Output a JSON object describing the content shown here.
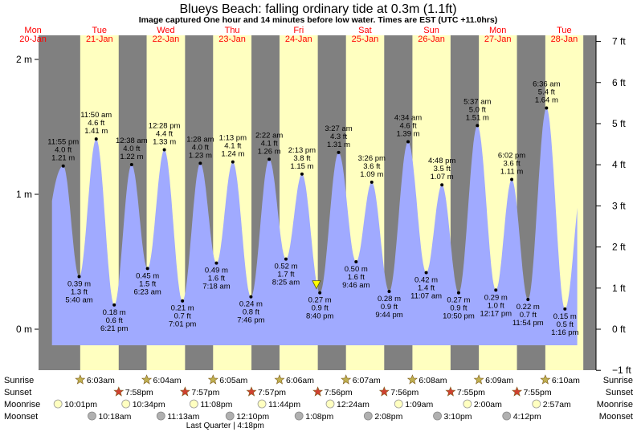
{
  "title": "Blueys Beach: falling  ordinary tide at 0.3m (1.1ft)",
  "subtitle": "Image captured One hour and 14 minutes before low water. Times are EST (UTC +11.0hrs)",
  "colors": {
    "night": "#808080",
    "day": "#ffffc0",
    "tide_fill": "#a0aaff",
    "day_label": "#ff0000",
    "moon": "#ffffc0",
    "moonset": "#b0b0b0",
    "sun": "#c0b050",
    "sunset": "#d04030"
  },
  "chart_data": {
    "type": "area",
    "title": "Blueys Beach: falling  ordinary tide at 0.3m (1.1ft)",
    "ylim_m": [
      -0.23,
      2.1
    ],
    "ylim_ft": [
      -1,
      7
    ],
    "y_left_ticks": [
      {
        "v": 2,
        "label": "2 m"
      },
      {
        "v": 1,
        "label": "1 m"
      },
      {
        "v": 0,
        "label": "0 m"
      }
    ],
    "y_right_ticks": [
      {
        "v": 7,
        "label": "7 ft"
      },
      {
        "v": 6,
        "label": "6 ft"
      },
      {
        "v": 5,
        "label": "5 ft"
      },
      {
        "v": 4,
        "label": "4 ft"
      },
      {
        "v": 3,
        "label": "3 ft"
      },
      {
        "v": 2,
        "label": "2 ft"
      },
      {
        "v": 1,
        "label": "1 ft"
      },
      {
        "v": 0,
        "label": "0 ft"
      },
      {
        "v": -1,
        "label": "−1 ft"
      }
    ],
    "days": [
      {
        "name": "Mon",
        "date": "20-Jan"
      },
      {
        "name": "Tue",
        "date": "21-Jan"
      },
      {
        "name": "Wed",
        "date": "22-Jan"
      },
      {
        "name": "Thu",
        "date": "23-Jan"
      },
      {
        "name": "Fri",
        "date": "24-Jan"
      },
      {
        "name": "Sat",
        "date": "25-Jan"
      },
      {
        "name": "Sun",
        "date": "26-Jan"
      },
      {
        "name": "Mon",
        "date": "27-Jan"
      },
      {
        "name": "Tue",
        "date": "28-Jan"
      }
    ],
    "daylight": [
      {
        "start": "2025-01-21 06:03",
        "end": "2025-01-21 19:58"
      },
      {
        "start": "2025-01-22 06:04",
        "end": "2025-01-22 19:57"
      },
      {
        "start": "2025-01-23 06:05",
        "end": "2025-01-23 19:57"
      },
      {
        "start": "2025-01-24 06:06",
        "end": "2025-01-24 19:56"
      },
      {
        "start": "2025-01-25 06:07",
        "end": "2025-01-25 19:56"
      },
      {
        "start": "2025-01-26 06:08",
        "end": "2025-01-26 19:55"
      },
      {
        "start": "2025-01-27 06:09",
        "end": "2025-01-27 19:55"
      },
      {
        "start": "2025-01-28 06:10",
        "end": "2025-01-28 19:54"
      }
    ],
    "tides": [
      {
        "t": "2025-01-20 23:55",
        "m": 1.21,
        "time": "11:55 pm",
        "ft": "4.0 ft",
        "mtxt": "1.21 m",
        "type": "high"
      },
      {
        "t": "2025-01-21 05:40",
        "m": 0.39,
        "time": "5:40 am",
        "ft": "1.3 ft",
        "mtxt": "0.39 m",
        "type": "low"
      },
      {
        "t": "2025-01-21 11:50",
        "m": 1.41,
        "time": "11:50 am",
        "ft": "4.6 ft",
        "mtxt": "1.41 m",
        "type": "high"
      },
      {
        "t": "2025-01-21 18:21",
        "m": 0.18,
        "time": "6:21 pm",
        "ft": "0.6 ft",
        "mtxt": "0.18 m",
        "type": "low"
      },
      {
        "t": "2025-01-22 00:38",
        "m": 1.22,
        "time": "12:38 am",
        "ft": "4.0 ft",
        "mtxt": "1.22 m",
        "type": "high"
      },
      {
        "t": "2025-01-22 06:23",
        "m": 0.45,
        "time": "6:23 am",
        "ft": "1.5 ft",
        "mtxt": "0.45 m",
        "type": "low"
      },
      {
        "t": "2025-01-22 12:28",
        "m": 1.33,
        "time": "12:28 pm",
        "ft": "4.4 ft",
        "mtxt": "1.33 m",
        "type": "high"
      },
      {
        "t": "2025-01-22 19:01",
        "m": 0.21,
        "time": "7:01 pm",
        "ft": "0.7 ft",
        "mtxt": "0.21 m",
        "type": "low"
      },
      {
        "t": "2025-01-23 01:28",
        "m": 1.23,
        "time": "1:28 am",
        "ft": "4.0 ft",
        "mtxt": "1.23 m",
        "type": "high"
      },
      {
        "t": "2025-01-23 07:18",
        "m": 0.49,
        "time": "7:18 am",
        "ft": "1.6 ft",
        "mtxt": "0.49 m",
        "type": "low"
      },
      {
        "t": "2025-01-23 13:13",
        "m": 1.24,
        "time": "1:13 pm",
        "ft": "4.1 ft",
        "mtxt": "1.24 m",
        "type": "high"
      },
      {
        "t": "2025-01-23 19:46",
        "m": 0.24,
        "time": "7:46 pm",
        "ft": "0.8 ft",
        "mtxt": "0.24 m",
        "type": "low"
      },
      {
        "t": "2025-01-24 02:22",
        "m": 1.26,
        "time": "2:22 am",
        "ft": "4.1 ft",
        "mtxt": "1.26 m",
        "type": "high"
      },
      {
        "t": "2025-01-24 08:25",
        "m": 0.52,
        "time": "8:25 am",
        "ft": "1.7 ft",
        "mtxt": "0.52 m",
        "type": "low"
      },
      {
        "t": "2025-01-24 14:13",
        "m": 1.15,
        "time": "2:13 pm",
        "ft": "3.8 ft",
        "mtxt": "1.15 m",
        "type": "high"
      },
      {
        "t": "2025-01-24 20:40",
        "m": 0.27,
        "time": "8:40 pm",
        "ft": "0.9 ft",
        "mtxt": "0.27 m",
        "type": "low"
      },
      {
        "t": "2025-01-25 03:27",
        "m": 1.31,
        "time": "3:27 am",
        "ft": "4.3 ft",
        "mtxt": "1.31 m",
        "type": "high"
      },
      {
        "t": "2025-01-25 09:46",
        "m": 0.5,
        "time": "9:46 am",
        "ft": "1.6 ft",
        "mtxt": "0.50 m",
        "type": "low"
      },
      {
        "t": "2025-01-25 15:26",
        "m": 1.09,
        "time": "3:26 pm",
        "ft": "3.6 ft",
        "mtxt": "1.09 m",
        "type": "high"
      },
      {
        "t": "2025-01-25 21:44",
        "m": 0.28,
        "time": "9:44 pm",
        "ft": "0.9 ft",
        "mtxt": "0.28 m",
        "type": "low"
      },
      {
        "t": "2025-01-26 04:34",
        "m": 1.39,
        "time": "4:34 am",
        "ft": "4.6 ft",
        "mtxt": "1.39 m",
        "type": "high"
      },
      {
        "t": "2025-01-26 11:07",
        "m": 0.42,
        "time": "11:07 am",
        "ft": "1.4 ft",
        "mtxt": "0.42 m",
        "type": "low"
      },
      {
        "t": "2025-01-26 16:48",
        "m": 1.07,
        "time": "4:48 pm",
        "ft": "3.5 ft",
        "mtxt": "1.07 m",
        "type": "high"
      },
      {
        "t": "2025-01-26 22:50",
        "m": 0.27,
        "time": "10:50 pm",
        "ft": "0.9 ft",
        "mtxt": "0.27 m",
        "type": "low"
      },
      {
        "t": "2025-01-27 05:37",
        "m": 1.51,
        "time": "5:37 am",
        "ft": "5.0 ft",
        "mtxt": "1.51 m",
        "type": "high"
      },
      {
        "t": "2025-01-27 12:17",
        "m": 0.29,
        "time": "12:17 pm",
        "ft": "1.0 ft",
        "mtxt": "0.29 m",
        "type": "low"
      },
      {
        "t": "2025-01-27 18:02",
        "m": 1.11,
        "time": "6:02 pm",
        "ft": "3.6 ft",
        "mtxt": "1.11 m",
        "type": "high"
      },
      {
        "t": "2025-01-27 23:54",
        "m": 0.22,
        "time": "11:54 pm",
        "ft": "0.7 ft",
        "mtxt": "0.22 m",
        "type": "low"
      },
      {
        "t": "2025-01-28 06:36",
        "m": 1.64,
        "time": "6:36 am",
        "ft": "5.4 ft",
        "mtxt": "1.64 m",
        "type": "high"
      },
      {
        "t": "2025-01-28 13:16",
        "m": 0.15,
        "time": "1:16 pm",
        "ft": "0.5 ft",
        "mtxt": "0.15 m",
        "type": "low"
      }
    ],
    "current": {
      "t": "2025-01-24 19:26",
      "m": 0.3
    }
  },
  "astro": {
    "labels": {
      "sunrise": "Sunrise",
      "sunset": "Sunset",
      "moonrise": "Moonrise",
      "moonset": "Moonset"
    },
    "sunrise": [
      {
        "t": "2025-01-21 06:03",
        "label": "6:03am"
      },
      {
        "t": "2025-01-22 06:04",
        "label": "6:04am"
      },
      {
        "t": "2025-01-23 06:05",
        "label": "6:05am"
      },
      {
        "t": "2025-01-24 06:06",
        "label": "6:06am"
      },
      {
        "t": "2025-01-25 06:07",
        "label": "6:07am"
      },
      {
        "t": "2025-01-26 06:08",
        "label": "6:08am"
      },
      {
        "t": "2025-01-27 06:09",
        "label": "6:09am"
      },
      {
        "t": "2025-01-28 06:10",
        "label": "6:10am"
      }
    ],
    "sunset": [
      {
        "t": "2025-01-21 19:58",
        "label": "7:58pm"
      },
      {
        "t": "2025-01-22 19:57",
        "label": "7:57pm"
      },
      {
        "t": "2025-01-23 19:57",
        "label": "7:57pm"
      },
      {
        "t": "2025-01-24 19:56",
        "label": "7:56pm"
      },
      {
        "t": "2025-01-25 19:56",
        "label": "7:56pm"
      },
      {
        "t": "2025-01-26 19:55",
        "label": "7:55pm"
      },
      {
        "t": "2025-01-27 19:55",
        "label": "7:55pm"
      }
    ],
    "moonrise": [
      {
        "t": "2025-01-20 22:01",
        "label": "10:01pm"
      },
      {
        "t": "2025-01-21 22:34",
        "label": "10:34pm"
      },
      {
        "t": "2025-01-22 23:08",
        "label": "11:08pm"
      },
      {
        "t": "2025-01-23 23:44",
        "label": "11:44pm"
      },
      {
        "t": "2025-01-25 00:24",
        "label": "12:24am"
      },
      {
        "t": "2025-01-26 01:09",
        "label": "1:09am"
      },
      {
        "t": "2025-01-27 02:00",
        "label": "2:00am"
      },
      {
        "t": "2025-01-28 02:57",
        "label": "2:57am"
      }
    ],
    "moonset": [
      {
        "t": "2025-01-21 10:18",
        "label": "10:18am"
      },
      {
        "t": "2025-01-22 11:13",
        "label": "11:13am"
      },
      {
        "t": "2025-01-23 12:10",
        "label": "12:10pm"
      },
      {
        "t": "2025-01-24 13:08",
        "label": "1:08pm"
      },
      {
        "t": "2025-01-25 14:08",
        "label": "2:08pm"
      },
      {
        "t": "2025-01-26 15:10",
        "label": "3:10pm"
      },
      {
        "t": "2025-01-27 16:12",
        "label": "4:12pm"
      }
    ],
    "phase": {
      "t": "2025-01-22 16:18",
      "label": "Last Quarter | 4:18pm"
    }
  }
}
